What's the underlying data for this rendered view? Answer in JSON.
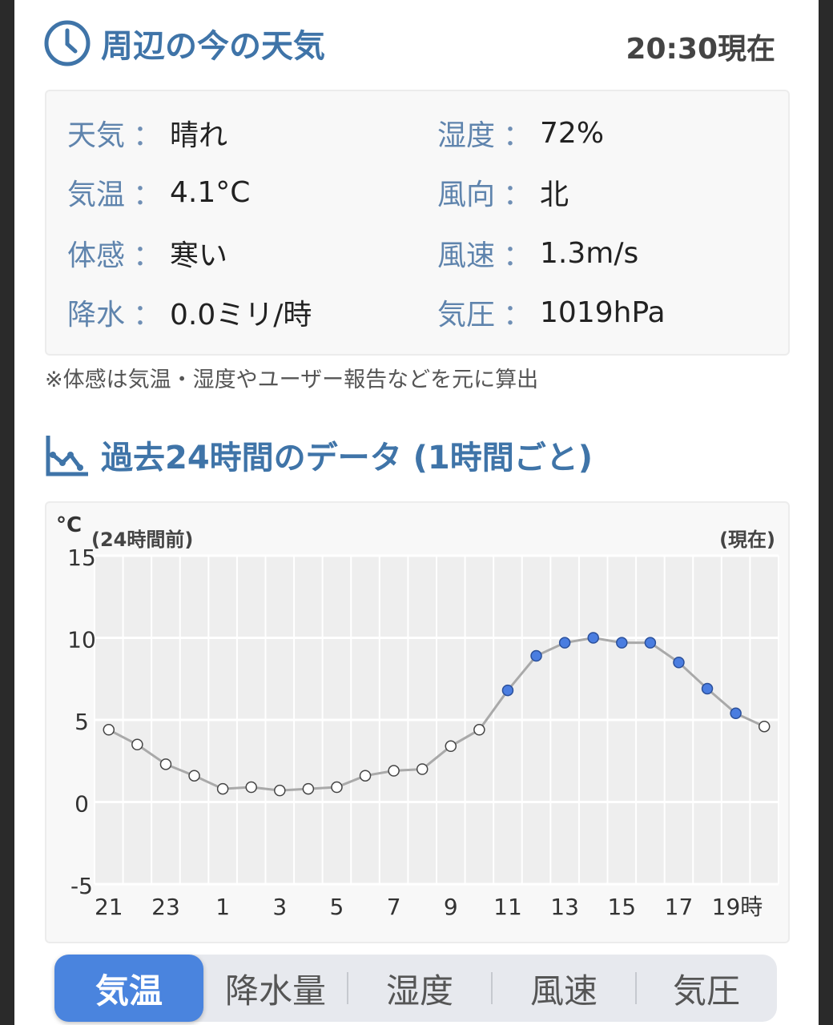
{
  "current": {
    "title": "周辺の今の天気",
    "time": "20:30現在",
    "items": [
      {
        "label": "天気",
        "value": "晴れ"
      },
      {
        "label": "湿度",
        "value": "72%"
      },
      {
        "label": "気温",
        "value": "4.1°C"
      },
      {
        "label": "風向",
        "value": "北"
      },
      {
        "label": "体感",
        "value": "寒い"
      },
      {
        "label": "風速",
        "value": "1.3m/s"
      },
      {
        "label": "降水",
        "value": "0.0ミリ/時"
      },
      {
        "label": "気圧",
        "value": "1019hPa"
      }
    ],
    "separator": "：",
    "note": "※体感は気温・湿度やユーザー報告などを元に算出"
  },
  "history": {
    "title": "過去24時間のデータ (1時間ごと)"
  },
  "chart_data": {
    "type": "line",
    "unit_label": "°C",
    "left_caption": "(24時間前)",
    "right_caption": "(現在)",
    "ylim": [
      -5,
      15
    ],
    "yticks": [
      "15",
      "10",
      "5",
      "0",
      "-5"
    ],
    "xtick_labels": [
      "21",
      "23",
      "1",
      "3",
      "5",
      "7",
      "9",
      "11",
      "13",
      "15",
      "17",
      "19時"
    ],
    "hours": [
      21,
      22,
      23,
      0,
      1,
      2,
      3,
      4,
      5,
      6,
      7,
      8,
      9,
      10,
      11,
      12,
      13,
      14,
      15,
      16,
      17,
      18,
      19,
      20
    ],
    "values": [
      4.4,
      3.5,
      2.3,
      1.6,
      0.8,
      0.9,
      0.7,
      0.8,
      0.9,
      1.6,
      1.9,
      2.0,
      3.4,
      4.4,
      6.8,
      8.9,
      9.7,
      10.0,
      9.7,
      9.7,
      8.5,
      6.9,
      5.4,
      4.6
    ],
    "highlight_hours": [
      11,
      12,
      13,
      14,
      15,
      16,
      17,
      18,
      19
    ],
    "grid": true,
    "colors": {
      "line": "#a9a9a9",
      "open_marker": "#ffffff",
      "filled_marker": "#4a7de0",
      "grid_bg": "#eeeeee"
    }
  },
  "tabs": [
    {
      "label": "気温",
      "active": true
    },
    {
      "label": "降水量",
      "active": false
    },
    {
      "label": "湿度",
      "active": false
    },
    {
      "label": "風速",
      "active": false
    },
    {
      "label": "気圧",
      "active": false
    }
  ]
}
